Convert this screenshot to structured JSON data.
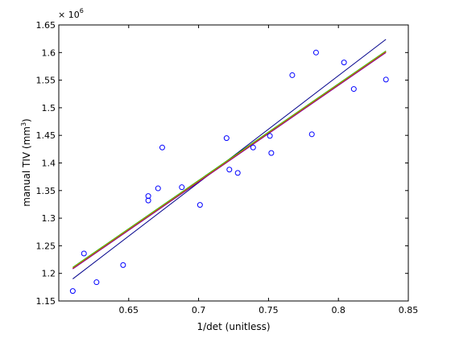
{
  "chart_data": {
    "type": "scatter",
    "title": "",
    "xlabel": "1/det (unitless)",
    "ylabel_main": "manual TIV (mm",
    "ylabel_sup": "3",
    "ylabel_close": ")",
    "y_exponent_base": "× 10",
    "y_exponent_power": "6",
    "xlim": [
      0.6,
      0.85
    ],
    "ylim": [
      1.15,
      1.65
    ],
    "x_ticks": [
      0.65,
      0.7,
      0.75,
      0.8,
      0.85
    ],
    "x_tick_labels": [
      "0.65",
      "0.7",
      "0.75",
      "0.8",
      "0.85"
    ],
    "y_ticks": [
      1.15,
      1.2,
      1.25,
      1.3,
      1.35,
      1.4,
      1.45,
      1.5,
      1.55,
      1.6,
      1.65
    ],
    "y_tick_labels": [
      "1.15",
      "1.2",
      "1.25",
      "1.3",
      "1.35",
      "1.4",
      "1.45",
      "1.5",
      "1.55",
      "1.6",
      "1.65"
    ],
    "y_scale_note": "values in units of 10^6 mm^3",
    "grid": false,
    "colors": {
      "points": "#0000ff",
      "axes": "#000000"
    },
    "points": [
      {
        "x": 0.61,
        "y": 1.168
      },
      {
        "x": 0.618,
        "y": 1.236
      },
      {
        "x": 0.627,
        "y": 1.184
      },
      {
        "x": 0.646,
        "y": 1.215
      },
      {
        "x": 0.664,
        "y": 1.34
      },
      {
        "x": 0.664,
        "y": 1.332
      },
      {
        "x": 0.671,
        "y": 1.354
      },
      {
        "x": 0.674,
        "y": 1.428
      },
      {
        "x": 0.688,
        "y": 1.356
      },
      {
        "x": 0.701,
        "y": 1.324
      },
      {
        "x": 0.72,
        "y": 1.445
      },
      {
        "x": 0.722,
        "y": 1.388
      },
      {
        "x": 0.728,
        "y": 1.382
      },
      {
        "x": 0.739,
        "y": 1.428
      },
      {
        "x": 0.751,
        "y": 1.449
      },
      {
        "x": 0.752,
        "y": 1.418
      },
      {
        "x": 0.767,
        "y": 1.559
      },
      {
        "x": 0.781,
        "y": 1.452
      },
      {
        "x": 0.784,
        "y": 1.6
      },
      {
        "x": 0.804,
        "y": 1.582
      },
      {
        "x": 0.811,
        "y": 1.534
      },
      {
        "x": 0.834,
        "y": 1.551
      }
    ],
    "fit_lines": [
      {
        "color": "#00008b",
        "x": [
          0.61,
          0.834
        ],
        "y": [
          1.19,
          1.624
        ]
      },
      {
        "color": "#00aa00",
        "x": [
          0.61,
          0.834
        ],
        "y": [
          1.211,
          1.603
        ]
      },
      {
        "color": "#d40000",
        "x": [
          0.61,
          0.834
        ],
        "y": [
          1.209,
          1.601
        ]
      },
      {
        "color": "#b8a000",
        "x": [
          0.61,
          0.834
        ],
        "y": [
          1.21,
          1.602
        ]
      },
      {
        "color": "#8b008b",
        "x": [
          0.61,
          0.834
        ],
        "y": [
          1.208,
          1.6
        ]
      }
    ]
  }
}
